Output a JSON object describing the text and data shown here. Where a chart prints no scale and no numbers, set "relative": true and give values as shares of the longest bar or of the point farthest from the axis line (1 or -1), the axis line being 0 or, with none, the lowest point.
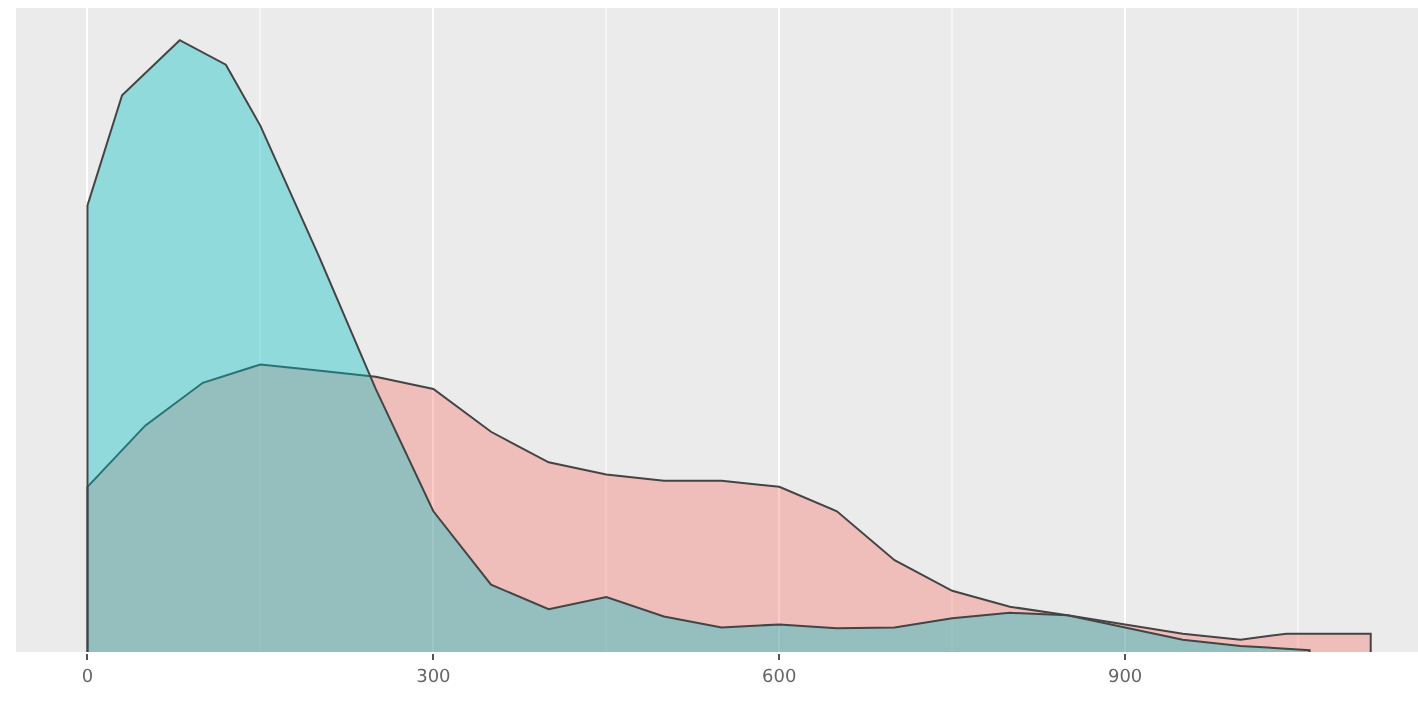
{
  "chart_data": {
    "type": "area",
    "relative": true,
    "xlim": [
      -62,
      1154
    ],
    "xticks": [
      0,
      300,
      600,
      900
    ],
    "grid": "x",
    "series": [
      {
        "color": "#f8766d",
        "x": [
          0,
          50,
          100,
          150,
          200,
          250,
          300,
          350,
          400,
          450,
          500,
          550,
          600,
          650,
          700,
          750,
          800,
          850,
          900,
          950,
          1000,
          1040,
          1113
        ],
        "values": [
          0.27,
          0.37,
          0.44,
          0.47,
          0.46,
          0.45,
          0.43,
          0.36,
          0.31,
          0.29,
          0.28,
          0.28,
          0.27,
          0.23,
          0.15,
          0.1,
          0.074,
          0.06,
          0.045,
          0.03,
          0.02,
          0.03,
          0.03
        ]
      },
      {
        "color": "#00bfc4",
        "x": [
          0,
          30,
          80,
          120,
          150,
          200,
          250,
          300,
          350,
          400,
          450,
          500,
          550,
          600,
          650,
          700,
          750,
          800,
          850,
          900,
          950,
          1000,
          1060
        ],
        "values": [
          0.73,
          0.91,
          1.0,
          0.96,
          0.86,
          0.65,
          0.43,
          0.23,
          0.11,
          0.07,
          0.09,
          0.058,
          0.04,
          0.045,
          0.039,
          0.04,
          0.055,
          0.064,
          0.06,
          0.04,
          0.02,
          0.01,
          0.003
        ]
      }
    ]
  }
}
